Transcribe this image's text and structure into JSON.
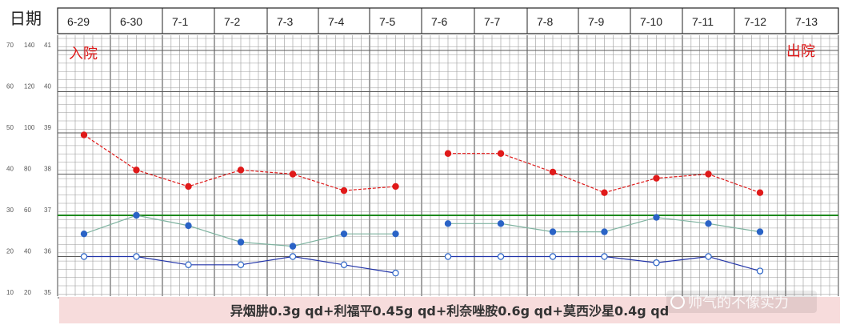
{
  "header": {
    "date_label": "日期"
  },
  "dates": [
    "6-29",
    "6-30",
    "7-1",
    "7-2",
    "7-3",
    "7-4",
    "7-5",
    "7-6",
    "7-7",
    "7-8",
    "7-9",
    "7-10",
    "7-11",
    "7-12",
    "7-13"
  ],
  "events": {
    "admit": "入院",
    "discharge": "出院"
  },
  "scale_rows": [
    [
      "70",
      "140",
      "41"
    ],
    [
      "60",
      "120",
      "40"
    ],
    [
      "50",
      "100",
      "39"
    ],
    [
      "40",
      "80",
      "38"
    ],
    [
      "30",
      "60",
      "37"
    ],
    [
      "20",
      "40",
      "36"
    ],
    [
      "10",
      "20",
      "35"
    ]
  ],
  "drug_note": "异烟肼0.3g qd+利福平0.45g qd+利奈唑胺0.6g qd+莫西沙星0.4g qd",
  "watermark": "帅气的不像实力",
  "colors": {
    "red_series": "#e01a1a",
    "teal_line": "#7fb3a0",
    "blue_marker": "#2a63c6",
    "dark_blue_line": "#2234a8",
    "green_baseline": "#1f8a1f",
    "grid_minor": "#9a9a9a",
    "grid_major": "#5a5a5a",
    "note_bg": "#f7dcdc"
  },
  "chart_data": {
    "type": "line",
    "x": [
      "6-29",
      "6-30",
      "7-1",
      "7-2",
      "7-3",
      "7-4",
      "7-5",
      "7-6",
      "7-7",
      "7-8",
      "7-9",
      "7-10",
      "7-11",
      "7-12"
    ],
    "y_scale_left": {
      "ticks": [
        10,
        20,
        30,
        40,
        50,
        60,
        70
      ],
      "ylim": [
        10,
        70
      ]
    },
    "baseline": 30,
    "series": [
      {
        "key": "red",
        "style": "red-filled",
        "values": [
          49.5,
          41,
          37,
          41,
          40,
          36,
          37,
          45,
          45,
          40.5,
          35.5,
          39,
          40,
          35.5
        ]
      },
      {
        "key": "teal",
        "style": "blue-filled-teal-line",
        "values": [
          25.5,
          30,
          27.5,
          23.5,
          22.5,
          25.5,
          25.5,
          28,
          28,
          26,
          26,
          29.5,
          28,
          26
        ]
      },
      {
        "key": "navy",
        "style": "blue-open-navy-line",
        "values": [
          20,
          20,
          18,
          18,
          20,
          18,
          16,
          20,
          20,
          20,
          20,
          18.5,
          20,
          16.5
        ]
      }
    ]
  }
}
